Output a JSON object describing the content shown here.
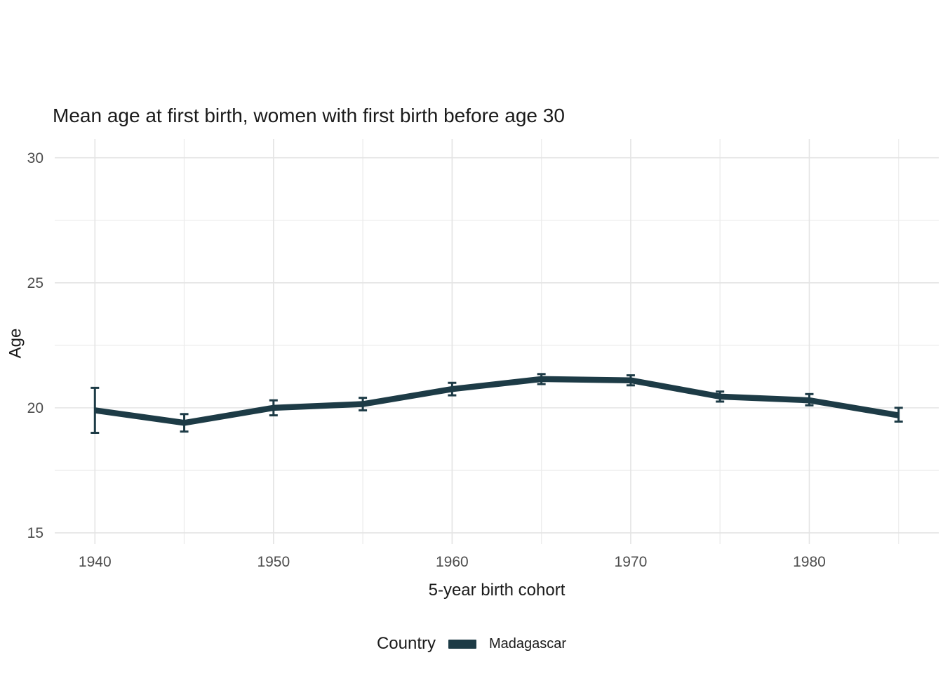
{
  "title": "Mean age at first birth, women with first birth before age 30",
  "x_axis": {
    "label": "5-year birth cohort"
  },
  "y_axis": {
    "label": "Age"
  },
  "legend": {
    "title": "Country",
    "items": [
      {
        "label": "Madagascar",
        "color": "#1d3b46"
      }
    ]
  },
  "colors": {
    "series": "#1d3b46",
    "grid_major": "#e4e4e4",
    "grid_minor": "#ececec",
    "tick_label": "#4d4d4d",
    "background": "#ffffff"
  },
  "chart_data": {
    "type": "line",
    "title": "Mean age at first birth, women with first birth before age 30",
    "xlabel": "5-year birth cohort",
    "ylabel": "Age",
    "legend_position": "bottom",
    "grid": true,
    "x": [
      1940,
      1945,
      1950,
      1955,
      1960,
      1965,
      1970,
      1975,
      1980,
      1985
    ],
    "x_major_ticks": [
      1940,
      1950,
      1960,
      1970,
      1980
    ],
    "x_minor_gridlines": [
      1945,
      1955,
      1965,
      1975,
      1985
    ],
    "y_major_ticks": [
      15,
      20,
      25,
      30
    ],
    "y_minor_gridlines": [
      17.5,
      22.5,
      27.5
    ],
    "xlim": [
      1937.75,
      1987.25
    ],
    "ylim": [
      14.55,
      30.75
    ],
    "series": [
      {
        "name": "Madagascar",
        "color": "#1d3b46",
        "values": [
          19.9,
          19.4,
          20.0,
          20.15,
          20.75,
          21.15,
          21.1,
          20.45,
          20.3,
          19.7
        ],
        "ci_low": [
          19.0,
          19.05,
          19.7,
          19.9,
          20.5,
          20.95,
          20.9,
          20.25,
          20.1,
          19.45
        ],
        "ci_high": [
          20.8,
          19.75,
          20.3,
          20.4,
          21.0,
          21.35,
          21.3,
          20.65,
          20.55,
          20.0
        ]
      }
    ]
  }
}
